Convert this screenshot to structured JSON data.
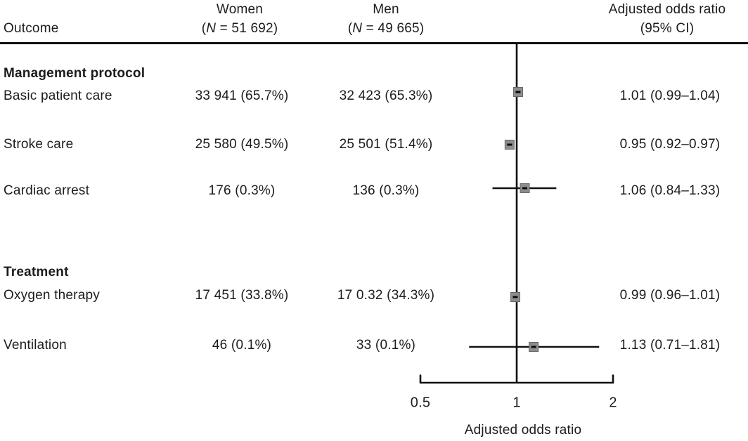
{
  "header": {
    "outcome": "Outcome",
    "women": {
      "label": "Women",
      "n_open": "(",
      "n_italic": "N",
      "n_rest": " = 51 692)"
    },
    "men": {
      "label": "Men",
      "n_open": "(",
      "n_italic": "N",
      "n_rest": " = 49 665)"
    },
    "aor": {
      "line1": "Adjusted odds ratio",
      "line2": "(95% CI)"
    }
  },
  "chart_data": {
    "type": "forest",
    "x_axis": {
      "scale": "log",
      "ticks": [
        0.5,
        1,
        2
      ],
      "tick_labels": [
        "0.5",
        "1",
        "2"
      ],
      "range": [
        0.5,
        2
      ],
      "reference_line": 1,
      "label": "Adjusted odds ratio"
    },
    "rows": [
      {
        "kind": "group",
        "label": "Management protocol"
      },
      {
        "kind": "item",
        "label": "Basic patient care",
        "women": "33 941 (65.7%)",
        "men": "32 423 (65.3%)",
        "or": 1.01,
        "ci_low": 0.99,
        "ci_high": 1.04,
        "aor_text": "1.01 (0.99–1.04)"
      },
      {
        "kind": "item",
        "label": "Stroke care",
        "women": "25 580 (49.5%)",
        "men": "25 501 (51.4%)",
        "or": 0.95,
        "ci_low": 0.92,
        "ci_high": 0.97,
        "aor_text": "0.95 (0.92–0.97)"
      },
      {
        "kind": "item",
        "label": "Cardiac arrest",
        "women": "176 (0.3%)",
        "men": "136 (0.3%)",
        "or": 1.06,
        "ci_low": 0.84,
        "ci_high": 1.33,
        "aor_text": "1.06 (0.84–1.33)"
      },
      {
        "kind": "group",
        "label": "Treatment"
      },
      {
        "kind": "item",
        "label": "Oxygen therapy",
        "women": "17 451 (33.8%)",
        "men": "17 0.32 (34.3%)",
        "or": 0.99,
        "ci_low": 0.96,
        "ci_high": 1.01,
        "aor_text": "0.99 (0.96–1.01)"
      },
      {
        "kind": "item",
        "label": "Ventilation",
        "women": "46 (0.1%)",
        "men": "33 (0.1%)",
        "or": 1.13,
        "ci_low": 0.71,
        "ci_high": 1.81,
        "aor_text": "1.13 (0.71–1.81)"
      }
    ]
  },
  "colors": {
    "text": "#1c1c1c",
    "line": "#101010",
    "marker_fill": "#8d8d8d",
    "marker_border": "#676767",
    "marker_dash": "#0a0a0a"
  }
}
